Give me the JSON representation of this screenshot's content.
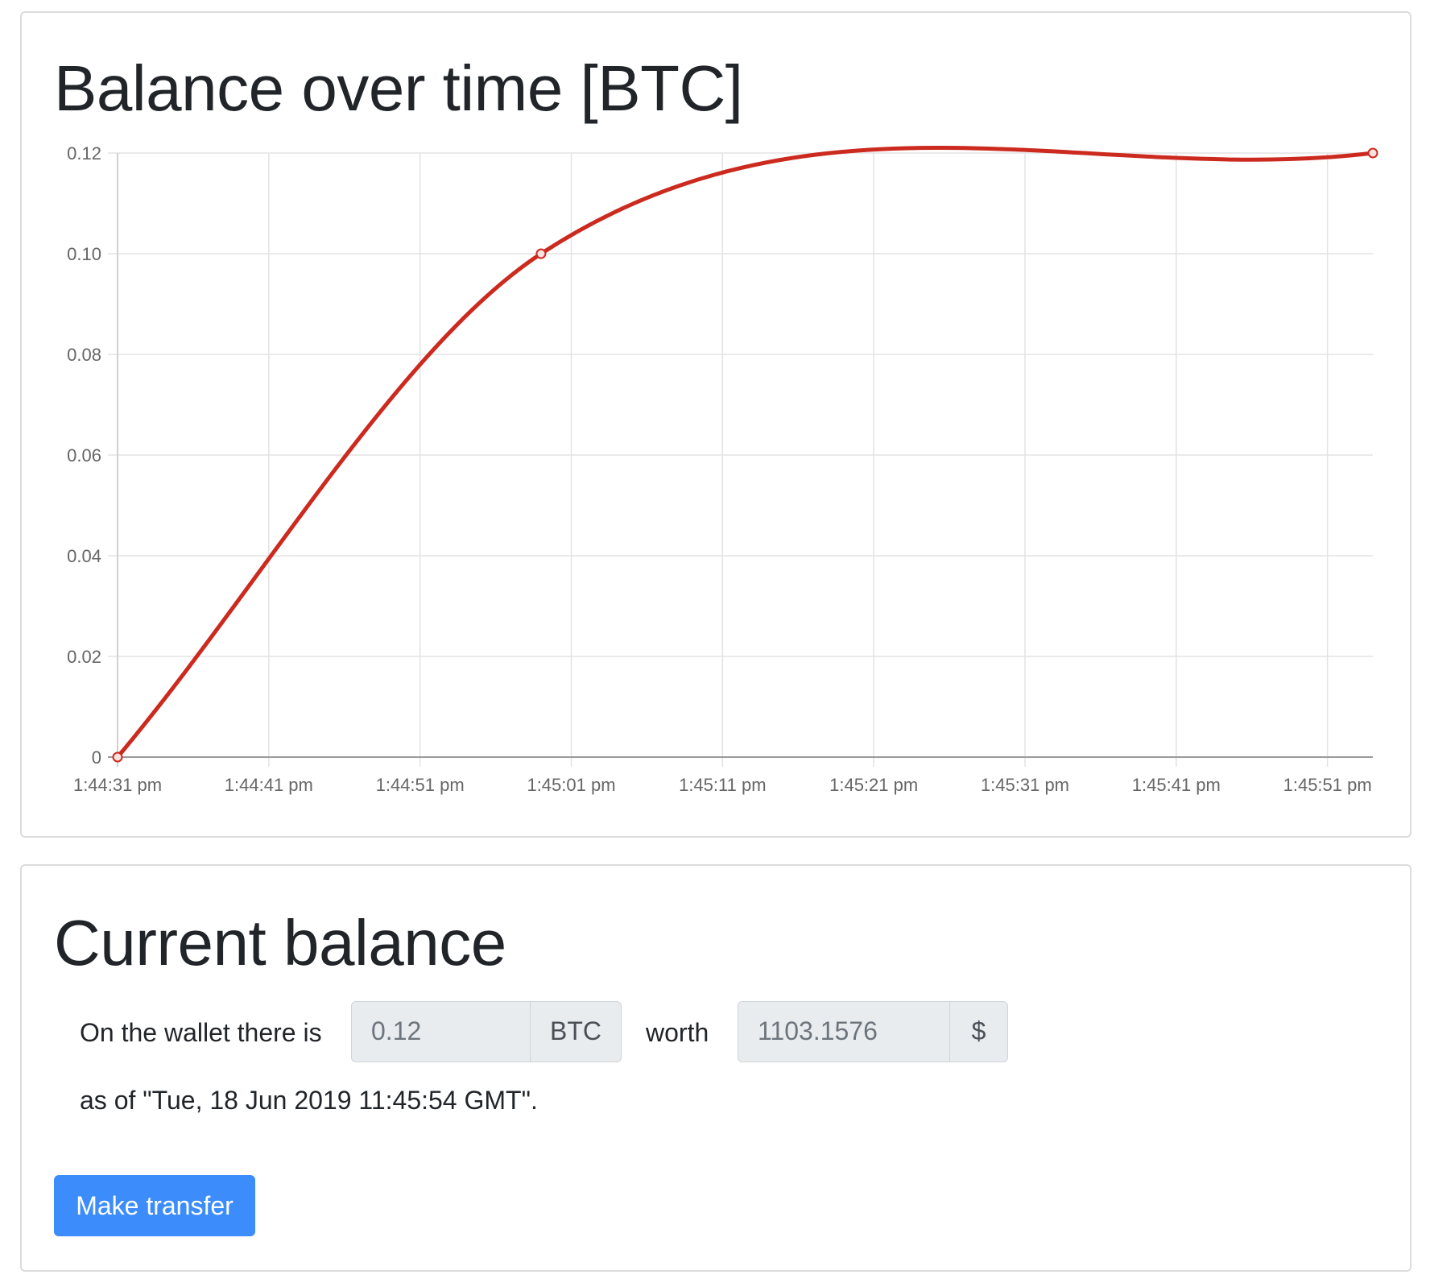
{
  "chart_card": {
    "title": "Balance over time [BTC]"
  },
  "chart_data": {
    "type": "line",
    "title": "Balance over time [BTC]",
    "x_ticks": [
      "1:44:31 pm",
      "1:44:41 pm",
      "1:44:51 pm",
      "1:45:01 pm",
      "1:45:11 pm",
      "1:45:21 pm",
      "1:45:31 pm",
      "1:45:41 pm",
      "1:45:51 pm"
    ],
    "y_ticks": [
      "0",
      "0.02",
      "0.04",
      "0.06",
      "0.08",
      "0.10",
      "0.12"
    ],
    "ylim": [
      0,
      0.12
    ],
    "xlim": [
      "1:44:31 pm",
      "1:45:54 pm"
    ],
    "series": [
      {
        "color": "#cc2a1f",
        "points": [
          {
            "x": "1:44:31 pm",
            "y": 0
          },
          {
            "x": "1:44:59 pm",
            "y": 0.1
          },
          {
            "x": "1:45:54 pm",
            "y": 0.12
          }
        ]
      }
    ],
    "grid": true,
    "interpolation": "smooth"
  },
  "balance_card": {
    "title": "Current balance",
    "prefix_text": "On the wallet there is",
    "btc_value": "0.12",
    "btc_unit": "BTC",
    "worth_text": "worth",
    "usd_value": "1103.1576",
    "usd_unit": "$",
    "as_of_text": "as of \"Tue, 18 Jun 2019 11:45:54 GMT\".",
    "button_label": "Make transfer",
    "button_color": "#3c8dfb"
  }
}
